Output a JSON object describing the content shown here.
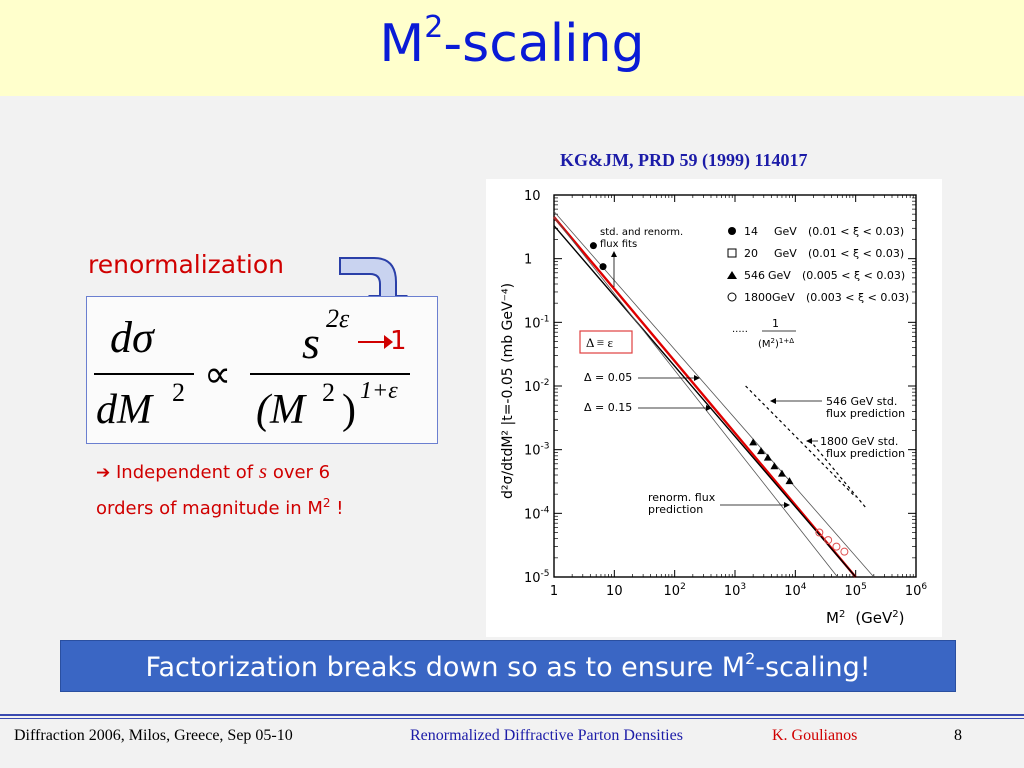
{
  "slide": {
    "title_main": "M",
    "title_sup": "2",
    "title_rest": "-scaling",
    "citation": "KG&JM, PRD 59 (1999) 114017",
    "renorm_label": "renormalization",
    "formula": {
      "lhs_num": "dσ",
      "lhs_den": "dM",
      "lhs_den_exp": "2",
      "propto": "∝",
      "rhs_num": "s",
      "rhs_num_exp": "2ε",
      "rhs_den": "(M",
      "rhs_den_exp": "2",
      "rhs_den_close": ")",
      "rhs_den_outer_exp": "1+ε",
      "arrow_result": "1"
    },
    "independent": {
      "arrow": "➔",
      "text1": "Independent of",
      "s": "s",
      "text2": "over 6",
      "text3": "orders of magnitude in M",
      "text3_sup": "2",
      "text3_end": "!"
    },
    "banner": {
      "text": "Factorization breaks down so as to ensure M",
      "sup": "2",
      "text_end": "-scaling!"
    },
    "footer": {
      "left": "Diffraction 2006, Milos, Greece, Sep 05-10",
      "center": "Renormalized Diffractive Parton Densities",
      "author": "K. Goulianos",
      "page": "8"
    },
    "colors": {
      "title": "#0a1bd6",
      "red": "#d00000",
      "banner": "#3a66c4",
      "title_bg": "#ffffcc"
    }
  },
  "chart_data": {
    "type": "scatter",
    "xlabel_base": "M",
    "xlabel_exp": "2",
    "xlabel_unit": "(GeV",
    "xlabel_unit_exp": "2",
    "xlabel_close": ")",
    "ylabel": "d²σ/dtdM² |t=-0.05 (mb GeV⁻⁴)",
    "x_scale": "log",
    "y_scale": "log",
    "xlim": [
      1,
      1000000
    ],
    "ylim": [
      1e-05,
      10
    ],
    "x_ticks": [
      {
        "base": "1",
        "exp": ""
      },
      {
        "base": "10",
        "exp": ""
      },
      {
        "base": "10",
        "exp": "2"
      },
      {
        "base": "10",
        "exp": "3"
      },
      {
        "base": "10",
        "exp": "4"
      },
      {
        "base": "10",
        "exp": "5"
      },
      {
        "base": "10",
        "exp": "6"
      }
    ],
    "y_ticks": [
      {
        "base": "10",
        "exp": ""
      },
      {
        "base": "1",
        "exp": ""
      },
      {
        "base": "10",
        "exp": "-1"
      },
      {
        "base": "10",
        "exp": "-2"
      },
      {
        "base": "10",
        "exp": "-3"
      },
      {
        "base": "10",
        "exp": "-4"
      },
      {
        "base": "10",
        "exp": "-5"
      }
    ],
    "legend": [
      {
        "marker": "filled-circle",
        "energy": "14",
        "unit": "GeV",
        "range": "(0.01  < ξ < 0.03)"
      },
      {
        "marker": "open-square",
        "energy": "20",
        "unit": "GeV",
        "range": "(0.01  < ξ < 0.03)"
      },
      {
        "marker": "filled-triangle",
        "energy": "546",
        "unit": "GeV",
        "range": "(0.005 < ξ < 0.03)"
      },
      {
        "marker": "open-circle",
        "energy": "1800",
        "unit": "GeV",
        "range": "(0.003 < ξ < 0.03)"
      }
    ],
    "annotations": {
      "fits_label_1": "std. and renorm.",
      "fits_label_2": "flux fits",
      "delta_eq": "Δ ≡ ε",
      "delta_005": "Δ = 0.05",
      "delta_015": "Δ = 0.15",
      "dots": "·····",
      "inv_num": "1",
      "inv_den": "(M",
      "inv_den_exp": "2",
      "inv_den_close": ")",
      "inv_den_exp2": "1+Δ",
      "std546_1": "546 GeV  std.",
      "std546_2": "flux prediction",
      "std1800_1": "1800 GeV std.",
      "std1800_2": "flux prediction",
      "renorm_1": "renorm. flux",
      "renorm_2": "prediction"
    },
    "series": [
      {
        "name": "14 GeV",
        "marker": "filled-circle",
        "points": [
          [
            4.5,
            1.6
          ],
          [
            6.5,
            0.75
          ]
        ]
      },
      {
        "name": "546 GeV",
        "marker": "filled-triangle",
        "points": [
          [
            2000,
            0.0013
          ],
          [
            2700,
            0.00095
          ],
          [
            3500,
            0.00075
          ],
          [
            4500,
            0.00055
          ],
          [
            6000,
            0.00042
          ],
          [
            8000,
            0.00032
          ]
        ]
      },
      {
        "name": "1800 GeV",
        "marker": "open-circle",
        "points": [
          [
            25000,
            5e-05
          ],
          [
            35000,
            3.8e-05
          ],
          [
            48000,
            3e-05
          ],
          [
            65000,
            2.5e-05
          ]
        ]
      }
    ],
    "lines": [
      {
        "style": "solid-red",
        "x": [
          1,
          100000
        ],
        "y": [
          4.5,
          1e-05
        ]
      },
      {
        "style": "solid-black",
        "x": [
          1,
          100000
        ],
        "y": [
          3.3,
          1e-05
        ]
      },
      {
        "style": "thin",
        "x": [
          1,
          50000
        ],
        "y": [
          4.5,
          1e-05
        ]
      },
      {
        "style": "thin",
        "x": [
          1,
          200000
        ],
        "y": [
          5.5,
          1e-05
        ]
      },
      {
        "style": "dashed",
        "x": [
          1500,
          100000
        ],
        "y": [
          0.01,
          0.00018
        ]
      },
      {
        "style": "dashed",
        "x": [
          20000,
          150000
        ],
        "y": [
          0.0012,
          0.00012
        ]
      }
    ]
  }
}
